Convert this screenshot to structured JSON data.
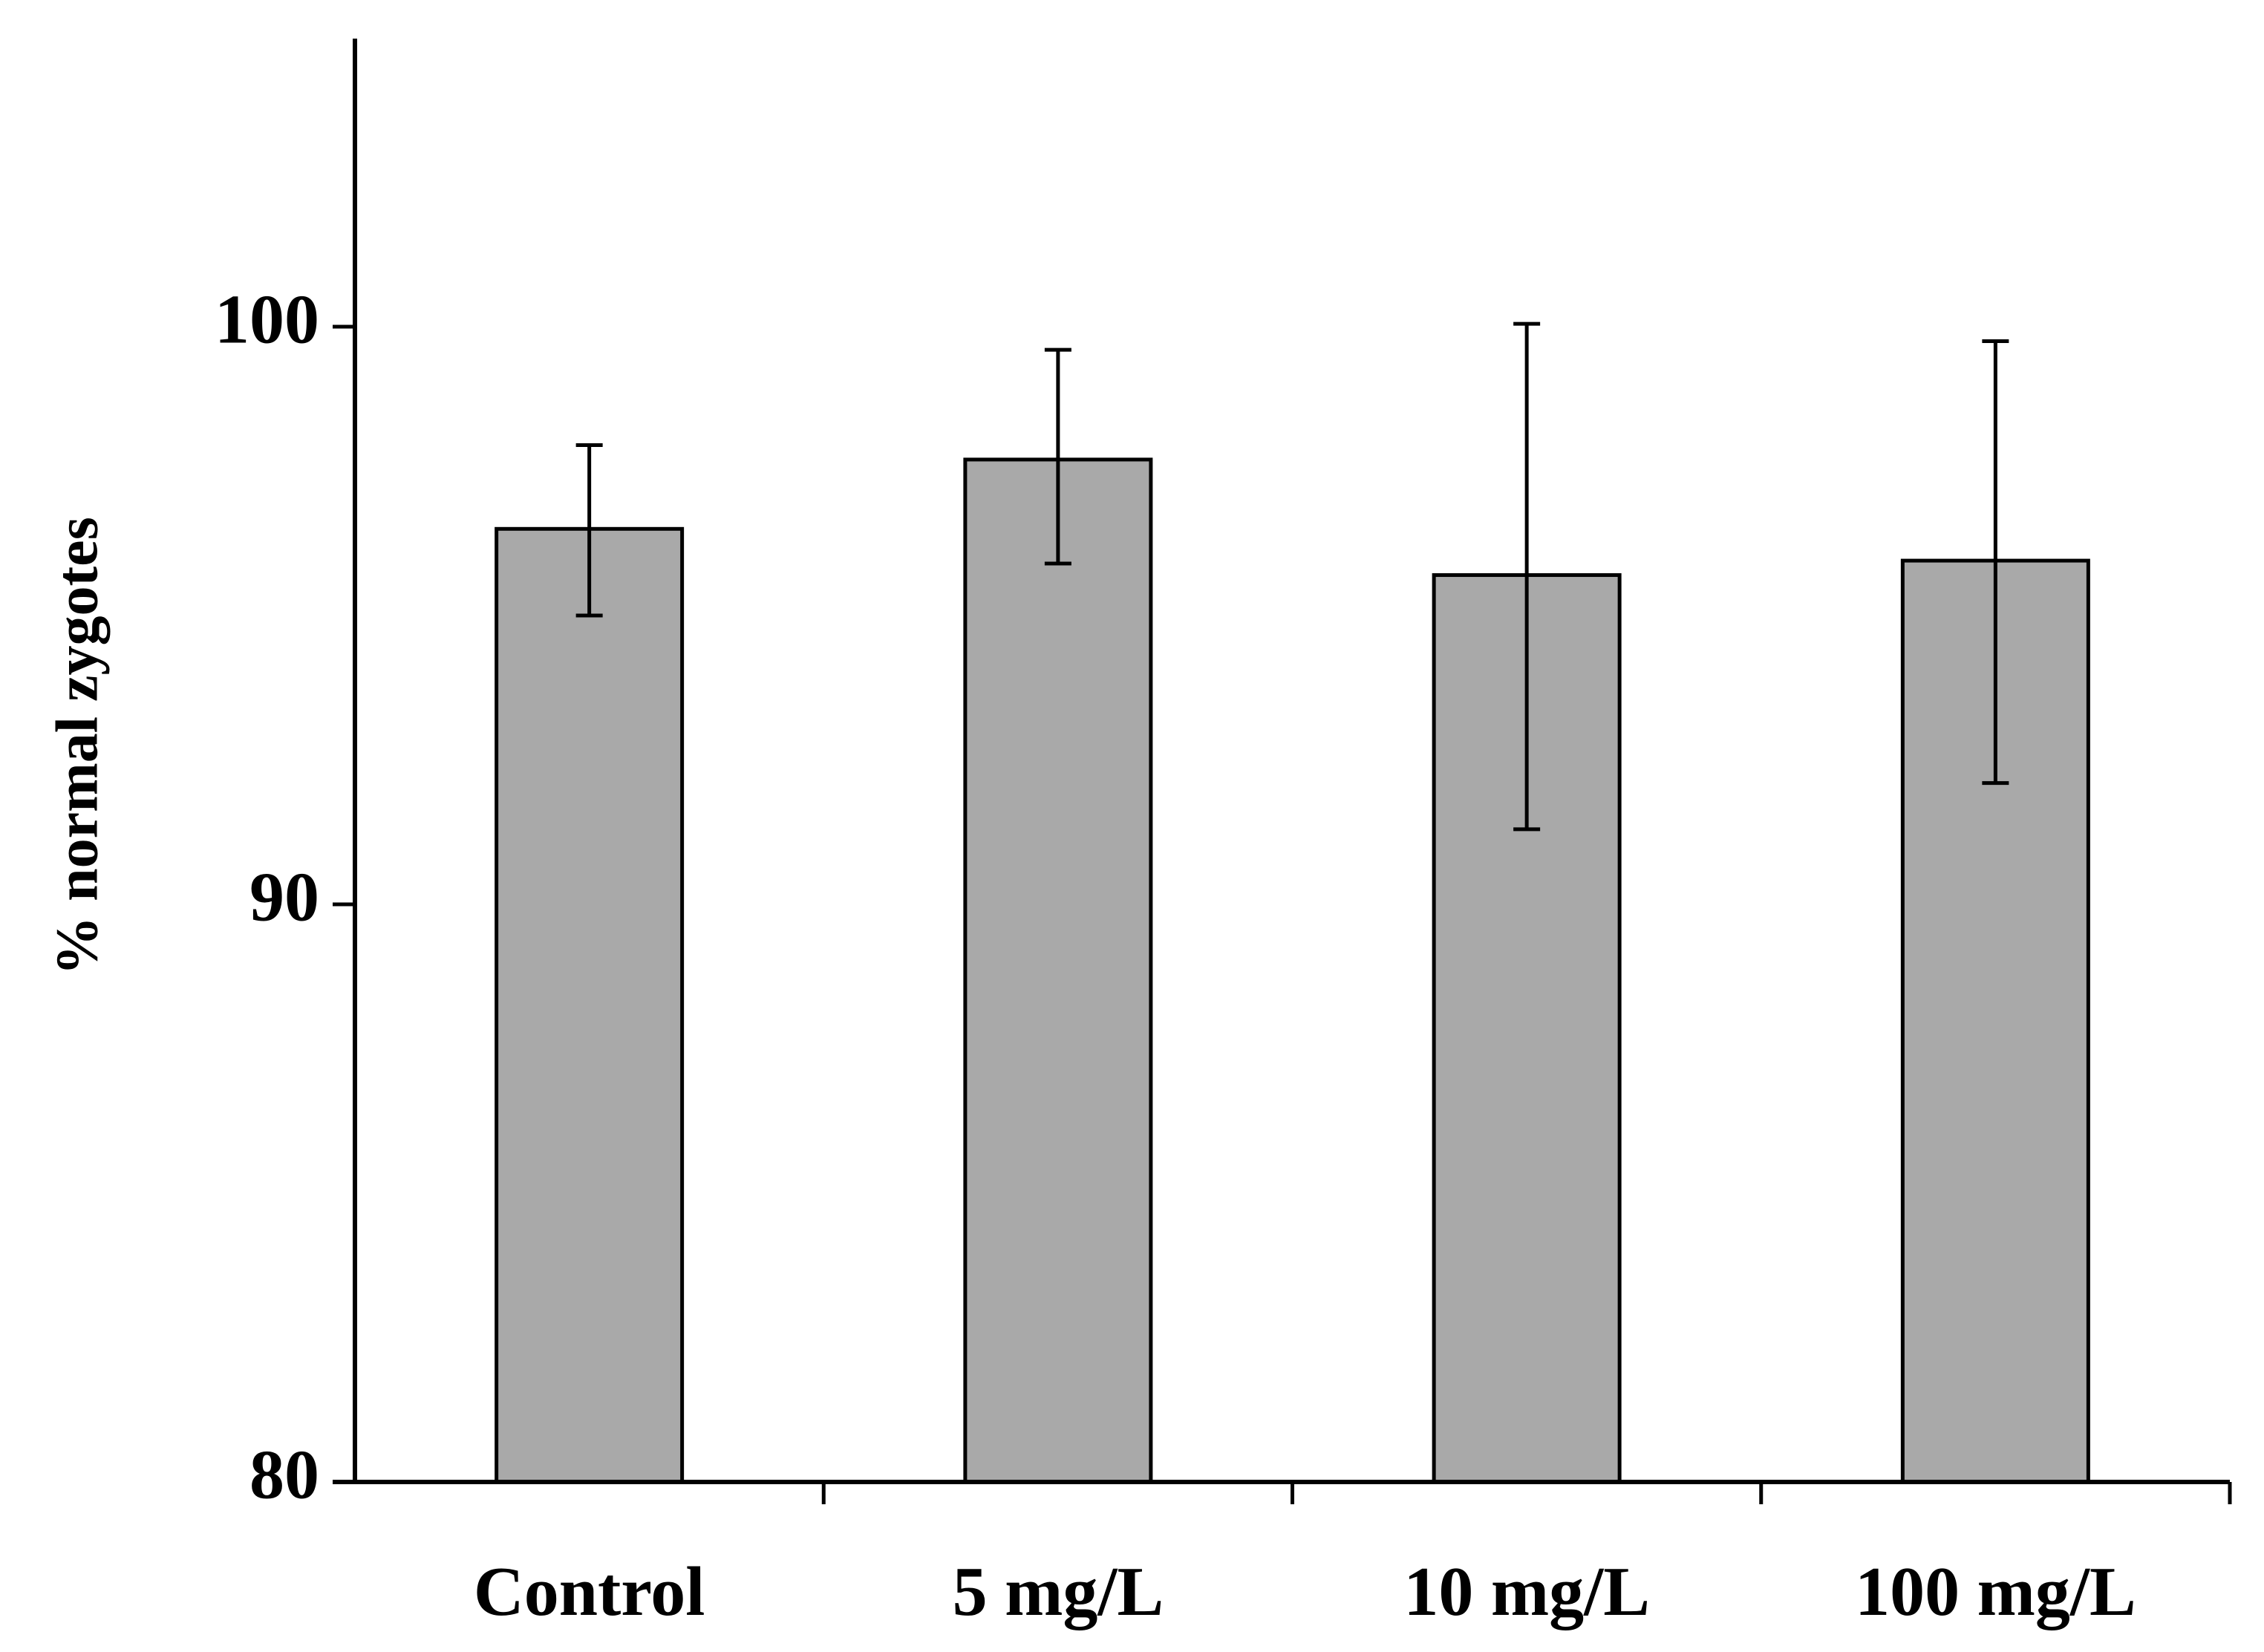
{
  "colors": {
    "bar_fill": "#a9a9a9",
    "bar_stroke": "#000000",
    "axis": "#000000",
    "background": "#ffffff"
  },
  "chart_data": {
    "type": "bar",
    "title": "",
    "xlabel": "",
    "ylabel": "% normal zygotes",
    "categories": [
      "Control",
      "5 mg/L",
      "10 mg/L",
      "100 mg/L"
    ],
    "series": [
      {
        "name": "% normal zygotes",
        "values": [
          96.5,
          97.7,
          95.7,
          95.95
        ],
        "error_low": [
          95.0,
          95.9,
          91.3,
          92.1
        ],
        "error_high": [
          97.95,
          99.6,
          100.05,
          99.75
        ]
      }
    ],
    "ylim": [
      80,
      105
    ],
    "yticks": [
      80,
      90,
      100
    ],
    "ytick_labels": [
      "80",
      "90",
      "100"
    ],
    "grid": false,
    "legend": "none"
  }
}
